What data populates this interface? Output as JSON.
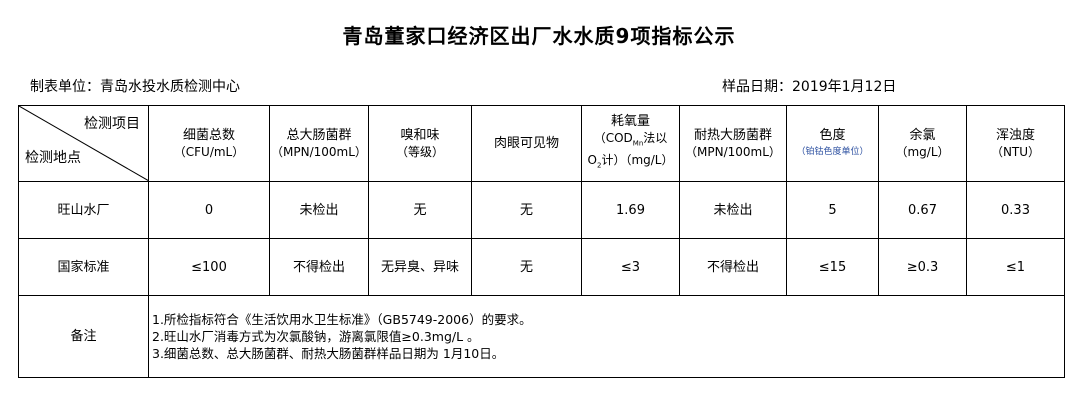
{
  "title": "青岛董家口经济区出厂水水质9项指标公示",
  "unit": "制表单位：青岛水投水质检测中心",
  "date": "样品日期：2019年1月12日",
  "corner": {
    "top": "检测项目",
    "bottom": "检测地点"
  },
  "columns": [
    {
      "name": "细菌总数",
      "unit": "（CFU/mL）"
    },
    {
      "name": "总大肠菌群",
      "unit": "（MPN/100mL）"
    },
    {
      "name": "嗅和味",
      "unit": "（等级）"
    },
    {
      "name": "肉眼可见物",
      "unit": ""
    },
    {
      "name": "耗氧量",
      "unit_a": "（COD",
      "unit_sub": "Mn",
      "unit_b": "法以",
      "unit_c": "O",
      "unit_c_sub": "2",
      "unit_d": "计）（mg/L）"
    },
    {
      "name": "耐热大肠菌群",
      "unit": "（MPN/100mL）"
    },
    {
      "name": "色度",
      "unit": "（铂钴色度单位）"
    },
    {
      "name": "余氯",
      "unit": "（mg/L）"
    },
    {
      "name": "浑浊度",
      "unit": "（NTU）"
    }
  ],
  "rows": [
    {
      "label": "旺山水厂",
      "values": [
        "0",
        "未检出",
        "无",
        "无",
        "1.69",
        "未检出",
        "5",
        "0.67",
        "0.33"
      ]
    },
    {
      "label": "国家标准",
      "values": [
        "≤100",
        "不得检出",
        "无异臭、异味",
        "无",
        "≤3",
        "不得检出",
        "≤15",
        "≥0.3",
        "≤1"
      ]
    }
  ],
  "remarks": {
    "label": "备注",
    "lines": [
      "1.所检指标符合《生活饮用水卫生标准》（GB5749-2006）的要求。",
      "2.旺山水厂消毒方式为次氯酸钠，游离氯限值≥0.3mg/L 。",
      "3.细菌总数、总大肠菌群、耐热大肠菌群样品日期为 1月10日。"
    ]
  }
}
